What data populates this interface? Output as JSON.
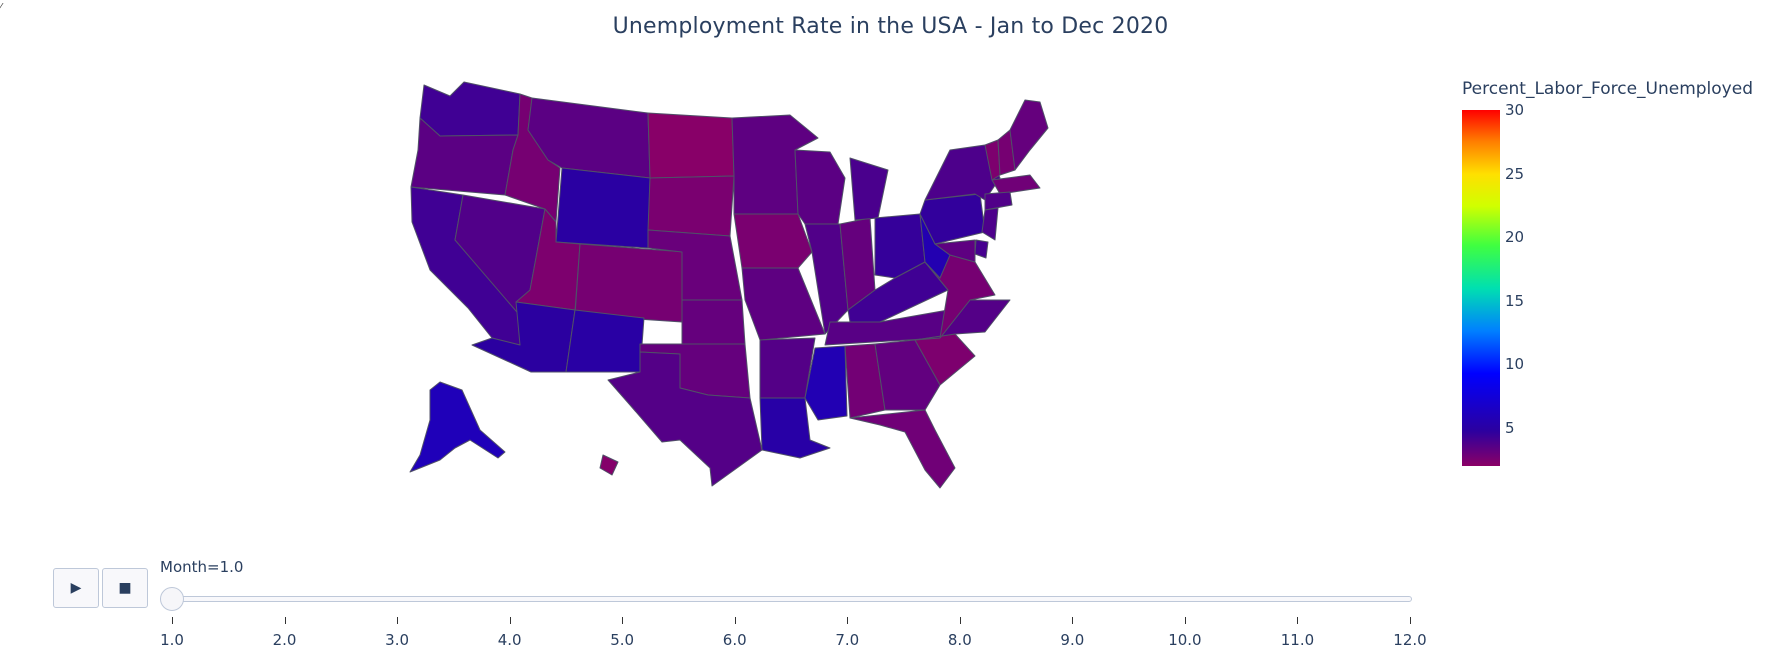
{
  "window": {
    "corner_glyph": "⁄"
  },
  "chart_data": {
    "type": "choropleth",
    "title": "Unemployment Rate in the USA - Jan to Dec 2020",
    "colorbar": {
      "title": "Percent_Labor_Force_Unemployed",
      "ticks": [
        "30",
        "25",
        "20",
        "15",
        "10",
        "5"
      ],
      "tick_values": [
        30,
        25,
        20,
        15,
        10,
        5
      ],
      "range": [
        2,
        30
      ],
      "colorscale": [
        "#8b0066",
        "#2b00a0",
        "#0000ff",
        "#0080ff",
        "#00e0b0",
        "#40ff40",
        "#d0ff00",
        "#ffe000",
        "#ff8000",
        "#ff0000"
      ]
    },
    "frame": {
      "label": "Month=1.0",
      "current_month": 1.0
    },
    "states": [
      {
        "state": "WA",
        "value": 4.2
      },
      {
        "state": "OR",
        "value": 3.4
      },
      {
        "state": "CA",
        "value": 4.2
      },
      {
        "state": "NV",
        "value": 3.7
      },
      {
        "state": "ID",
        "value": 2.6
      },
      {
        "state": "MT",
        "value": 3.4
      },
      {
        "state": "WY",
        "value": 4.9
      },
      {
        "state": "UT",
        "value": 2.4
      },
      {
        "state": "CO",
        "value": 2.6
      },
      {
        "state": "AZ",
        "value": 4.8
      },
      {
        "state": "NM",
        "value": 5.0
      },
      {
        "state": "ND",
        "value": 2.1
      },
      {
        "state": "SD",
        "value": 2.5
      },
      {
        "state": "NE",
        "value": 3.0
      },
      {
        "state": "KS",
        "value": 3.1
      },
      {
        "state": "OK",
        "value": 3.1
      },
      {
        "state": "TX",
        "value": 3.6
      },
      {
        "state": "MN",
        "value": 3.3
      },
      {
        "state": "IA",
        "value": 2.5
      },
      {
        "state": "MO",
        "value": 3.3
      },
      {
        "state": "AR",
        "value": 3.6
      },
      {
        "state": "LA",
        "value": 5.1
      },
      {
        "state": "WI",
        "value": 3.4
      },
      {
        "state": "IL",
        "value": 3.7
      },
      {
        "state": "IN",
        "value": 3.1
      },
      {
        "state": "MI",
        "value": 3.9
      },
      {
        "state": "OH",
        "value": 4.5
      },
      {
        "state": "KY",
        "value": 4.2
      },
      {
        "state": "TN",
        "value": 3.5
      },
      {
        "state": "MS",
        "value": 5.7
      },
      {
        "state": "AL",
        "value": 2.7
      },
      {
        "state": "GA",
        "value": 3.2
      },
      {
        "state": "FL",
        "value": 2.8
      },
      {
        "state": "SC",
        "value": 2.4
      },
      {
        "state": "NC",
        "value": 3.6
      },
      {
        "state": "VA",
        "value": 2.6
      },
      {
        "state": "WV",
        "value": 5.6
      },
      {
        "state": "PA",
        "value": 4.6
      },
      {
        "state": "NY",
        "value": 3.8
      },
      {
        "state": "VT",
        "value": 2.4
      },
      {
        "state": "NH",
        "value": 2.6
      },
      {
        "state": "ME",
        "value": 3.1
      },
      {
        "state": "MA",
        "value": 2.8
      },
      {
        "state": "CT",
        "value": 3.7
      },
      {
        "state": "NJ",
        "value": 3.8
      },
      {
        "state": "DE",
        "value": 4.0
      },
      {
        "state": "MD",
        "value": 3.3
      },
      {
        "state": "AK",
        "value": 6.0
      },
      {
        "state": "HI",
        "value": 2.2
      }
    ]
  },
  "controls": {
    "play_icon": "▶",
    "stop_icon": "■"
  },
  "slider": {
    "tick_labels": [
      "1.0",
      "2.0",
      "3.0",
      "4.0",
      "5.0",
      "6.0",
      "7.0",
      "8.0",
      "9.0",
      "10.0",
      "11.0",
      "12.0"
    ],
    "tick_values": [
      1,
      2,
      3,
      4,
      5,
      6,
      7,
      8,
      9,
      10,
      11,
      12
    ],
    "current": 1.0
  }
}
